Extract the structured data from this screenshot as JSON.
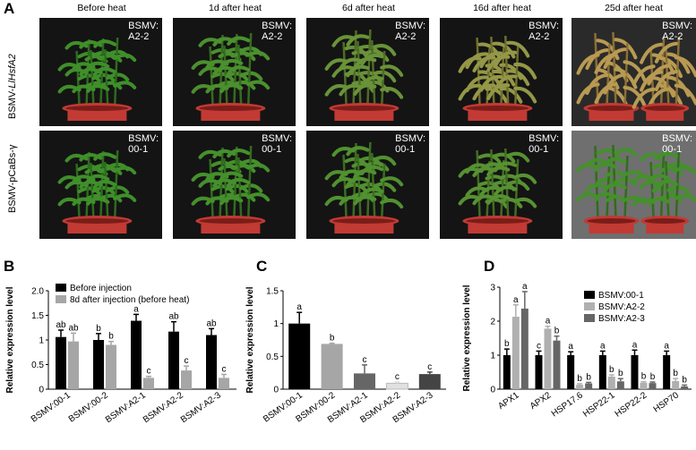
{
  "panelA": {
    "letter": "A",
    "columns": [
      "Before heat",
      "1d after heat",
      "6d after heat",
      "16d after heat",
      "25d after heat"
    ],
    "rows": [
      {
        "label_prefix": "BSMV-",
        "label_italic": "LlHsfA2",
        "photo_label_line1": "BSMV:",
        "photo_label_line2": "A2-2",
        "wilt": [
          0,
          0.1,
          0.35,
          0.7,
          1.0
        ]
      },
      {
        "label_prefix": "BSMV-pCaBs-γ",
        "label_italic": "",
        "photo_label_line1": "BSMV:",
        "photo_label_line2": "00-1",
        "wilt": [
          0,
          0.05,
          0.15,
          0.2,
          0.05
        ]
      }
    ],
    "colors": {
      "leaf": "#3f8f2a",
      "leaf_dark": "#2d6b1e",
      "wilted": "#b89a52",
      "pot": "#c23a34",
      "bg": "#141414"
    }
  },
  "chart_data": [
    {
      "panel": "B",
      "type": "bar",
      "ylabel": "Relative expression level",
      "ylim": [
        0,
        2.0
      ],
      "yticks": [
        "0",
        "0.5",
        "1",
        "1.5",
        "2.0"
      ],
      "categories": [
        "BSMV:00-1",
        "BSMV:00-2",
        "BSMV:A2-1",
        "BSMV:A2-2",
        "BSMV:A2-3"
      ],
      "series": [
        {
          "name": "Before injection",
          "color": "#000000",
          "values": [
            1.06,
            1.0,
            1.39,
            1.17,
            1.1
          ],
          "errors": [
            0.14,
            0.13,
            0.13,
            0.2,
            0.13
          ],
          "letters": [
            "ab",
            "b",
            "a",
            "ab",
            "ab"
          ]
        },
        {
          "name": "8d after injection (before heat)",
          "color": "#a6a6a6",
          "values": [
            0.97,
            0.9,
            0.23,
            0.38,
            0.23
          ],
          "errors": [
            0.17,
            0.07,
            0.03,
            0.09,
            0.07
          ],
          "letters": [
            "ab",
            "b",
            "c",
            "c",
            "c"
          ]
        }
      ],
      "legend": "top-left"
    },
    {
      "panel": "C",
      "type": "bar",
      "ylabel": "Relative expression level",
      "ylim": [
        0,
        1.5
      ],
      "yticks": [
        "0",
        "0.5",
        "1",
        "1.5"
      ],
      "categories": [
        "BSMV:00-1",
        "BSMV:00-2",
        "BSMV:A2-1",
        "BSMV:A2-2",
        "BSMV:A2-3"
      ],
      "values": [
        1.0,
        0.69,
        0.24,
        0.09,
        0.23
      ],
      "errors": [
        0.17,
        0.01,
        0.13,
        0.02,
        0.03
      ],
      "colors": [
        "#000000",
        "#a6a6a6",
        "#666666",
        "#e0e0e0",
        "#444444"
      ],
      "letters": [
        "a",
        "b",
        "c",
        "c",
        "c"
      ]
    },
    {
      "panel": "D",
      "type": "bar",
      "ylabel": "Relative expression level",
      "ylim": [
        0,
        3
      ],
      "yticks": [
        "0",
        "1",
        "2",
        "3"
      ],
      "categories": [
        "APX1",
        "APX2",
        "HSP17.6",
        "HSP22-1",
        "HSP22-2",
        "HSP70"
      ],
      "series": [
        {
          "name": "BSMV:00-1",
          "color": "#000000",
          "values": [
            1.0,
            1.0,
            1.0,
            1.0,
            1.0,
            1.0
          ],
          "errors": [
            0.18,
            0.12,
            0.1,
            0.12,
            0.15,
            0.12
          ],
          "letters": [
            "b",
            "c",
            "a",
            "a",
            "a",
            "a"
          ]
        },
        {
          "name": "BSMV:A2-2",
          "color": "#b0b0b0",
          "values": [
            2.13,
            1.78,
            0.13,
            0.37,
            0.19,
            0.24
          ],
          "errors": [
            0.35,
            0.07,
            0.03,
            0.05,
            0.03,
            0.07
          ],
          "letters": [
            "a",
            "a",
            "b",
            "b",
            "b",
            "b"
          ]
        },
        {
          "name": "BSMV:A2-3",
          "color": "#666666",
          "values": [
            2.37,
            1.43,
            0.17,
            0.23,
            0.18,
            0.08
          ],
          "errors": [
            0.5,
            0.13,
            0.03,
            0.08,
            0.03,
            0.04
          ],
          "letters": [
            "a",
            "b",
            "b",
            "b",
            "b",
            "b"
          ]
        }
      ],
      "legend": "top-right"
    }
  ]
}
